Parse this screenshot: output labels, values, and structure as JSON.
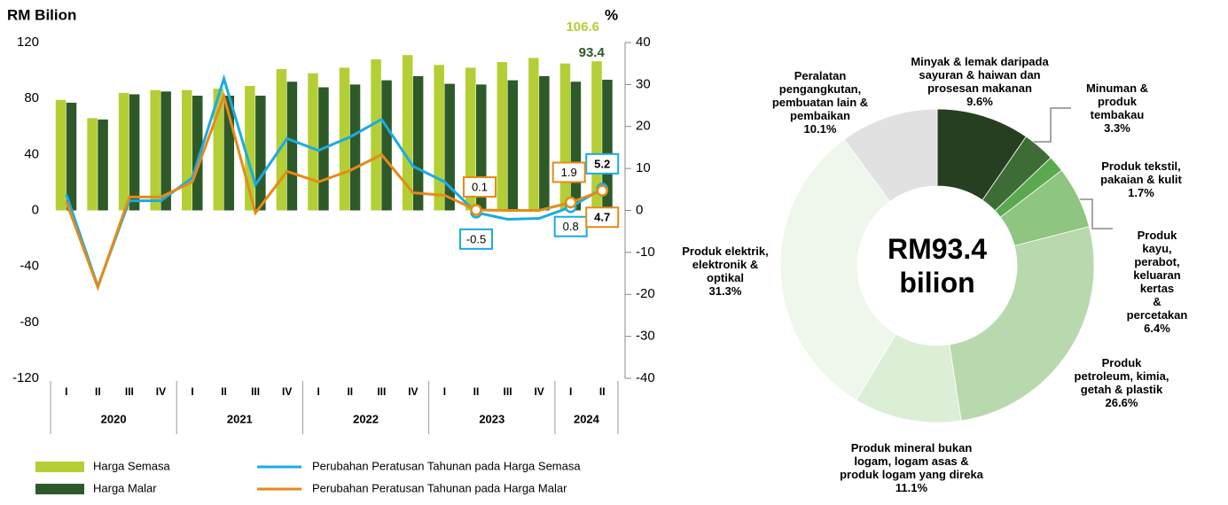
{
  "chart_data": [
    {
      "type": "combo",
      "y_label": "RM Bilion",
      "y2_label": "%",
      "categories": [
        "I",
        "II",
        "III",
        "IV",
        "I",
        "II",
        "III",
        "IV",
        "I",
        "II",
        "III",
        "IV",
        "I",
        "II",
        "III",
        "IV",
        "I",
        "II"
      ],
      "groups": [
        {
          "label": "2020",
          "count": 4
        },
        {
          "label": "2021",
          "count": 4
        },
        {
          "label": "2022",
          "count": 4
        },
        {
          "label": "2023",
          "count": 4
        },
        {
          "label": "2024",
          "count": 2
        }
      ],
      "ylim": [
        -120,
        120
      ],
      "yticks": [
        -120,
        -80,
        -40,
        0,
        40,
        80,
        120
      ],
      "y2lim": [
        -40,
        40
      ],
      "y2ticks": [
        -40,
        -30,
        -20,
        -10,
        0,
        10,
        20,
        30,
        40
      ],
      "series": [
        {
          "name": "Harga Semasa",
          "type": "bar",
          "color": "#b3cf35",
          "values": [
            79,
            66,
            84,
            86,
            86,
            87,
            89,
            101,
            98,
            102,
            108,
            111,
            104,
            102,
            106,
            109,
            105,
            106.6
          ],
          "value_labels": [
            null,
            null,
            null,
            null,
            null,
            null,
            null,
            null,
            null,
            null,
            null,
            null,
            null,
            null,
            null,
            null,
            null,
            "106.6"
          ]
        },
        {
          "name": "Harga Malar",
          "type": "bar",
          "color": "#2e5a2a",
          "values": [
            77,
            65,
            83,
            85,
            82,
            82,
            82,
            92,
            88,
            90,
            93,
            96,
            90.5,
            90,
            93,
            96,
            92,
            93.4
          ],
          "value_labels": [
            null,
            null,
            null,
            null,
            null,
            null,
            null,
            null,
            null,
            null,
            null,
            null,
            null,
            null,
            null,
            null,
            null,
            "93.4"
          ]
        },
        {
          "name": "Perubahan Peratusan Tahunan pada Harga Semasa",
          "type": "line",
          "axis": "y2",
          "color": "#1aabe3",
          "values": [
            3.8,
            -18.1,
            2.3,
            2.3,
            7.8,
            31.4,
            6.1,
            17.1,
            14.3,
            17.5,
            21.7,
            10.5,
            6.8,
            -0.5,
            -2.1,
            -1.9,
            0.8,
            5.2
          ],
          "value_labels": [
            null,
            null,
            null,
            null,
            null,
            null,
            null,
            null,
            null,
            null,
            null,
            null,
            null,
            "-0.5",
            null,
            null,
            "0.8",
            "5.2"
          ]
        },
        {
          "name": "Perubahan Peratusan Tahunan pada Harga Malar",
          "type": "line",
          "axis": "y2",
          "color": "#e68a17",
          "values": [
            2,
            -18.3,
            3.2,
            3.2,
            6.8,
            27.2,
            -0.6,
            9.3,
            6.8,
            9.5,
            13.3,
            4.2,
            3.6,
            0.1,
            0,
            0,
            1.9,
            4.7
          ],
          "value_labels": [
            null,
            null,
            null,
            null,
            null,
            null,
            null,
            null,
            null,
            null,
            null,
            null,
            null,
            "0.1",
            null,
            null,
            "1.9",
            "4.7"
          ]
        }
      ]
    },
    {
      "type": "donut",
      "center_text": "RM93.4\nbilion",
      "categories": [
        "Minyak & lemak daripada\nsayuran & haiwan dan\nprosesan makanan",
        "Minuman &\nproduk\ntembakau",
        "Produk tekstil,\npakaian & kulit",
        "Produk kayu,\nperabot,\nkeluaran kertas\n& percetakan",
        "Produk\npetroleum, kimia,\ngetah & plastik",
        "Produk mineral bukan\nlogam, logam asas &\nproduk logam yang direka",
        "Produk elektrik,\nelektronik &\noptikal",
        "Peralatan\npengangkutan,\npembuatan lain &\npembaikan"
      ],
      "values": [
        9.6,
        3.3,
        1.7,
        6.4,
        26.6,
        11.1,
        31.3,
        10.1
      ],
      "value_labels": [
        "9.6%",
        "3.3%",
        "1.7%",
        "6.4%",
        "26.6%",
        "11.1%",
        "31.3%",
        "10.1%"
      ],
      "colors": [
        "#263f21",
        "#3e6c35",
        "#5ba94e",
        "#8ec580",
        "#b8d9ad",
        "#dcefd6",
        "#eff7ed",
        "#e1e1e1"
      ]
    }
  ]
}
